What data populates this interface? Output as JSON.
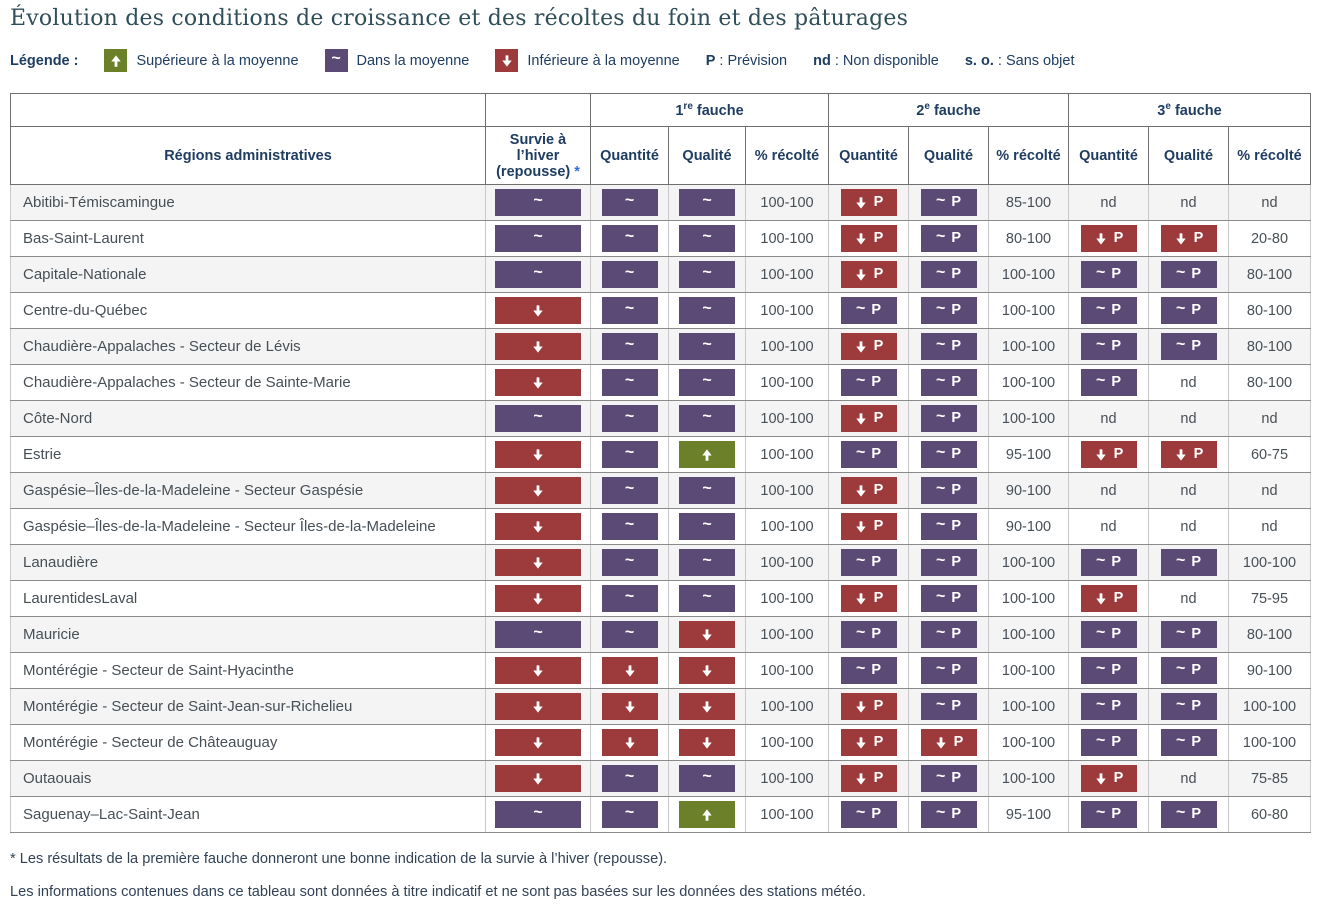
{
  "title": "Évolution des conditions de croissance et des récoltes du foin et des pâturages",
  "legend": {
    "label": "Légende :",
    "items": [
      {
        "icon": "above",
        "label": "Supérieure à la moyenne"
      },
      {
        "icon": "avg",
        "label": "Dans la moyenne"
      },
      {
        "icon": "below",
        "label": "Inférieure à la moyenne"
      }
    ],
    "abbrevs": [
      {
        "abbr": "P",
        "sep": " : ",
        "label": "Prévision"
      },
      {
        "abbr": "nd",
        "sep": " : ",
        "label": "Non disponible"
      },
      {
        "abbr": "s. o.",
        "sep": " : ",
        "label": "Sans objet"
      }
    ]
  },
  "colors": {
    "above": "#6b8029",
    "average": "#5b4a76",
    "below": "#9d3a3b",
    "header_text": "#1f3d61",
    "title_text": "#2f4e58"
  },
  "table": {
    "groups": [
      {
        "num": "1",
        "sup": "re",
        "tail": " fauche"
      },
      {
        "num": "2",
        "sup": "e",
        "tail": " fauche"
      },
      {
        "num": "3",
        "sup": "e",
        "tail": " fauche"
      }
    ],
    "headers": {
      "region": "Régions administratives",
      "survival": "Survie à l’hiver (repousse)",
      "star": "*",
      "quantity": "Quantité",
      "quality": "Qualité",
      "harvest": "% récolté"
    },
    "badges": {
      "prevision": "P",
      "nd": "nd"
    },
    "rows": [
      {
        "region": "Abitibi-Témiscamingue",
        "survival": "avg",
        "f1": [
          "avg",
          "avg",
          "100-100"
        ],
        "f2": [
          "below_p",
          "avg_p",
          "85-100"
        ],
        "f3": [
          "nd",
          "nd",
          "nd"
        ]
      },
      {
        "region": "Bas-Saint-Laurent",
        "survival": "avg",
        "f1": [
          "avg",
          "avg",
          "100-100"
        ],
        "f2": [
          "below_p",
          "avg_p",
          "80-100"
        ],
        "f3": [
          "below_p",
          "below_p",
          "20-80"
        ]
      },
      {
        "region": "Capitale-Nationale",
        "survival": "avg",
        "f1": [
          "avg",
          "avg",
          "100-100"
        ],
        "f2": [
          "below_p",
          "avg_p",
          "100-100"
        ],
        "f3": [
          "avg_p",
          "avg_p",
          "80-100"
        ]
      },
      {
        "region": "Centre-du-Québec",
        "survival": "below",
        "f1": [
          "avg",
          "avg",
          "100-100"
        ],
        "f2": [
          "avg_p",
          "avg_p",
          "100-100"
        ],
        "f3": [
          "avg_p",
          "avg_p",
          "80-100"
        ]
      },
      {
        "region": "Chaudière-Appalaches - Secteur de Lévis",
        "survival": "below",
        "f1": [
          "avg",
          "avg",
          "100-100"
        ],
        "f2": [
          "below_p",
          "avg_p",
          "100-100"
        ],
        "f3": [
          "avg_p",
          "avg_p",
          "80-100"
        ]
      },
      {
        "region": "Chaudière-Appalaches - Secteur de Sainte-Marie",
        "survival": "below",
        "f1": [
          "avg",
          "avg",
          "100-100"
        ],
        "f2": [
          "avg_p",
          "avg_p",
          "100-100"
        ],
        "f3": [
          "avg_p",
          "nd",
          "80-100"
        ]
      },
      {
        "region": "Côte-Nord",
        "survival": "avg",
        "f1": [
          "avg",
          "avg",
          "100-100"
        ],
        "f2": [
          "below_p",
          "avg_p",
          "100-100"
        ],
        "f3": [
          "nd",
          "nd",
          "nd"
        ]
      },
      {
        "region": "Estrie",
        "survival": "below",
        "f1": [
          "avg",
          "above",
          "100-100"
        ],
        "f2": [
          "avg_p",
          "avg_p",
          "95-100"
        ],
        "f3": [
          "below_p",
          "below_p",
          "60-75"
        ]
      },
      {
        "region": "Gaspésie–Îles-de-la-Madeleine - Secteur Gaspésie",
        "survival": "below",
        "f1": [
          "avg",
          "avg",
          "100-100"
        ],
        "f2": [
          "below_p",
          "avg_p",
          "90-100"
        ],
        "f3": [
          "nd",
          "nd",
          "nd"
        ]
      },
      {
        "region": "Gaspésie–Îles-de-la-Madeleine - Secteur Îles-de-la-Madeleine",
        "survival": "below",
        "f1": [
          "avg",
          "avg",
          "100-100"
        ],
        "f2": [
          "below_p",
          "avg_p",
          "90-100"
        ],
        "f3": [
          "nd",
          "nd",
          "nd"
        ]
      },
      {
        "region": "Lanaudière",
        "survival": "below",
        "f1": [
          "avg",
          "avg",
          "100-100"
        ],
        "f2": [
          "avg_p",
          "avg_p",
          "100-100"
        ],
        "f3": [
          "avg_p",
          "avg_p",
          "100-100"
        ]
      },
      {
        "region": "LaurentidesLaval",
        "survival": "below",
        "f1": [
          "avg",
          "avg",
          "100-100"
        ],
        "f2": [
          "below_p",
          "avg_p",
          "100-100"
        ],
        "f3": [
          "below_p",
          "nd",
          "75-95"
        ]
      },
      {
        "region": "Mauricie",
        "survival": "avg",
        "f1": [
          "avg",
          "below",
          "100-100"
        ],
        "f2": [
          "avg_p",
          "avg_p",
          "100-100"
        ],
        "f3": [
          "avg_p",
          "avg_p",
          "80-100"
        ]
      },
      {
        "region": "Montérégie - Secteur de Saint-Hyacinthe",
        "survival": "below",
        "f1": [
          "below",
          "below",
          "100-100"
        ],
        "f2": [
          "avg_p",
          "avg_p",
          "100-100"
        ],
        "f3": [
          "avg_p",
          "avg_p",
          "90-100"
        ]
      },
      {
        "region": "Montérégie - Secteur de Saint-Jean-sur-Richelieu",
        "survival": "below",
        "f1": [
          "below",
          "below",
          "100-100"
        ],
        "f2": [
          "below_p",
          "avg_p",
          "100-100"
        ],
        "f3": [
          "avg_p",
          "avg_p",
          "100-100"
        ]
      },
      {
        "region": "Montérégie - Secteur de Châteauguay",
        "survival": "below",
        "f1": [
          "below",
          "below",
          "100-100"
        ],
        "f2": [
          "below_p",
          "below_p",
          "100-100"
        ],
        "f3": [
          "avg_p",
          "avg_p",
          "100-100"
        ]
      },
      {
        "region": "Outaouais",
        "survival": "below",
        "f1": [
          "avg",
          "avg",
          "100-100"
        ],
        "f2": [
          "below_p",
          "avg_p",
          "100-100"
        ],
        "f3": [
          "below_p",
          "nd",
          "75-85"
        ]
      },
      {
        "region": "Saguenay–Lac-Saint-Jean",
        "survival": "avg",
        "f1": [
          "avg",
          "above",
          "100-100"
        ],
        "f2": [
          "avg_p",
          "avg_p",
          "95-100"
        ],
        "f3": [
          "avg_p",
          "avg_p",
          "60-80"
        ]
      }
    ]
  },
  "footnotes": [
    "* Les résultats de la première fauche donneront une bonne indication de la survie à l’hiver (repousse).",
    "Les informations contenues dans ce tableau sont données à titre indicatif et ne sont pas basées sur les données des stations météo."
  ]
}
